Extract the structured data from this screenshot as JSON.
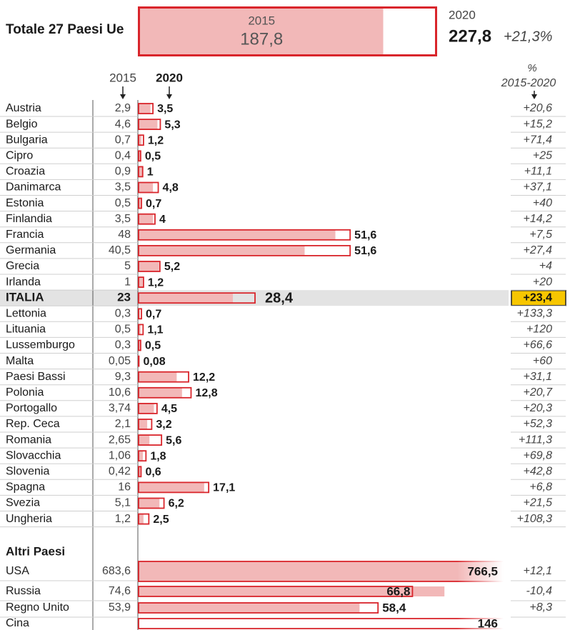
{
  "chart_data": [
    {
      "type": "bar",
      "title": "Totale 27 Paesi Ue",
      "series": [
        {
          "name": "2015",
          "color": "#f2b8b8",
          "values": [
            187.8
          ],
          "value_labels": [
            "187,8"
          ]
        },
        {
          "name": "2020",
          "color": "#d9252b",
          "values": [
            227.8
          ],
          "value_labels": [
            "227,8"
          ]
        }
      ],
      "change": {
        "values": [
          21.3
        ],
        "value_labels": [
          "+21,3%"
        ]
      }
    },
    {
      "type": "bar",
      "categories": [
        "Austria",
        "Belgio",
        "Bulgaria",
        "Cipro",
        "Croazia",
        "Danimarca",
        "Estonia",
        "Finlandia",
        "Francia",
        "Germania",
        "Grecia",
        "Irlanda",
        "ITALIA",
        "Lettonia",
        "Lituania",
        "Lussemburgo",
        "Malta",
        "Paesi Bassi",
        "Polonia",
        "Portogallo",
        "Rep. Ceca",
        "Romania",
        "Slovacchia",
        "Slovenia",
        "Spagna",
        "Svezia",
        "Ungheria"
      ],
      "highlight": "ITALIA",
      "series": [
        {
          "name": "2015",
          "color": "#f2b8b8",
          "values": [
            2.9,
            4.6,
            0.7,
            0.4,
            0.9,
            3.5,
            0.5,
            3.5,
            48,
            40.5,
            5,
            1,
            23,
            0.3,
            0.5,
            0.3,
            0.05,
            9.3,
            10.6,
            3.74,
            2.1,
            2.65,
            1.06,
            0.42,
            16,
            5.1,
            1.2
          ],
          "value_labels": [
            "2,9",
            "4,6",
            "0,7",
            "0,4",
            "0,9",
            "3,5",
            "0,5",
            "3,5",
            "48",
            "40,5",
            "5",
            "1",
            "23",
            "0,3",
            "0,5",
            "0,3",
            "0,05",
            "9,3",
            "10,6",
            "3,74",
            "2,1",
            "2,65",
            "1,06",
            "0,42",
            "16",
            "5,1",
            "1,2"
          ]
        },
        {
          "name": "2020",
          "color": "#d9252b",
          "values": [
            3.5,
            5.3,
            1.2,
            0.5,
            1,
            4.8,
            0.7,
            4,
            51.6,
            51.6,
            5.2,
            1.2,
            28.4,
            0.7,
            1.1,
            0.5,
            0.08,
            12.2,
            12.8,
            4.5,
            3.2,
            5.6,
            1.8,
            0.6,
            17.1,
            6.2,
            2.5
          ],
          "value_labels": [
            "3,5",
            "5,3",
            "1,2",
            "0,5",
            "1",
            "4,8",
            "0,7",
            "4",
            "51,6",
            "51,6",
            "5,2",
            "1,2",
            "28,4",
            "0,7",
            "1,1",
            "0,5",
            "0,08",
            "12,2",
            "12,8",
            "4,5",
            "3,2",
            "5,6",
            "1,8",
            "0,6",
            "17,1",
            "6,2",
            "2,5"
          ]
        }
      ],
      "change": {
        "unit": "%",
        "name": "2015-2020",
        "values": [
          20.6,
          15.2,
          71.4,
          25,
          11.1,
          37.1,
          40,
          14.2,
          7.5,
          27.4,
          4,
          20,
          23.4,
          133.3,
          120,
          66.6,
          60,
          31.1,
          20.7,
          20.3,
          52.3,
          111.3,
          69.8,
          42.8,
          6.8,
          21.5,
          108.3
        ],
        "value_labels": [
          "+20,6",
          "+15,2",
          "+71,4",
          "+25",
          "+11,1",
          "+37,1",
          "+40",
          "+14,2",
          "+7,5",
          "+27,4",
          "+4",
          "+20",
          "+23,4",
          "+133,3",
          "+120",
          "+66,6",
          "+60",
          "+31,1",
          "+20,7",
          "+20,3",
          "+52,3",
          "+111,3",
          "+69,8",
          "+42,8",
          "+6,8",
          "+21,5",
          "+108,3"
        ]
      }
    },
    {
      "type": "bar",
      "title": "Altri Paesi",
      "categories": [
        "USA",
        "Russia",
        "Regno Unito",
        "Cina"
      ],
      "series": [
        {
          "name": "2015",
          "color": "#f2b8b8",
          "values": [
            683.6,
            74.6,
            53.9,
            null
          ],
          "value_labels": [
            "683,6",
            "74,6",
            "53,9",
            null
          ]
        },
        {
          "name": "2020",
          "color": "#d9252b",
          "values": [
            766.5,
            66.8,
            58.4,
            146
          ],
          "value_labels": [
            "766,5",
            "66,8",
            "58,4",
            "146"
          ]
        }
      ],
      "change": {
        "values": [
          12.1,
          -10.4,
          8.3,
          null
        ],
        "value_labels": [
          "+12,1",
          "-10,4",
          "+8,3",
          null
        ]
      }
    }
  ]
}
